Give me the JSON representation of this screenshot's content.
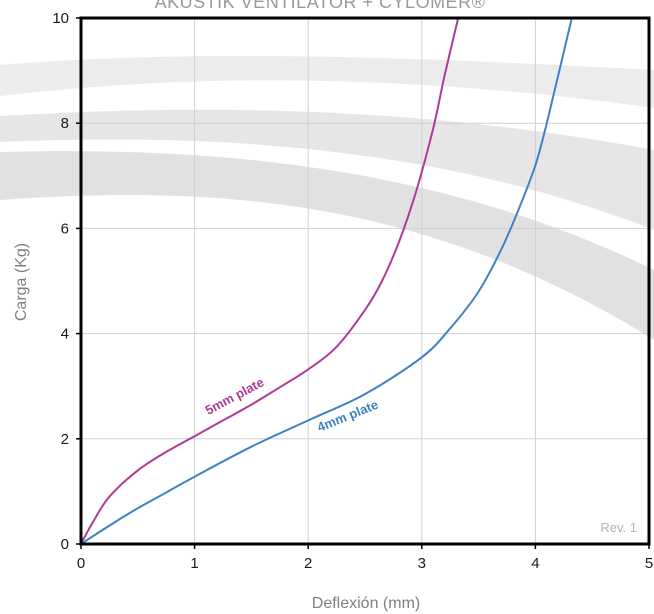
{
  "chart_data": {
    "type": "line",
    "title": "AKUSTIK VENTILATOR + CYLOMER®",
    "xlabel": "Deflexión (mm)",
    "ylabel": "Carga (Kg)",
    "xlim": [
      0,
      5
    ],
    "ylim": [
      0,
      10
    ],
    "x_ticks": [
      "0",
      "1",
      "2",
      "3",
      "4",
      "5"
    ],
    "y_ticks": [
      "0",
      "2",
      "4",
      "6",
      "8",
      "10"
    ],
    "grid": true,
    "annotation": "Rev. 1",
    "series": [
      {
        "name": "5mm plate",
        "color": "#b03a9a",
        "x": [
          0,
          0.1,
          0.25,
          0.5,
          0.75,
          1.0,
          1.25,
          1.5,
          1.75,
          2.0,
          2.25,
          2.5,
          2.65,
          2.8,
          2.95,
          3.1,
          3.2,
          3.32
        ],
        "y": [
          0,
          0.4,
          0.9,
          1.4,
          1.75,
          2.05,
          2.35,
          2.65,
          2.98,
          3.32,
          3.75,
          4.45,
          5.0,
          5.75,
          6.7,
          7.9,
          8.9,
          10
        ]
      },
      {
        "name": "4mm plate",
        "color": "#3f82c4",
        "x": [
          0,
          0.25,
          0.5,
          0.75,
          1.0,
          1.5,
          2.0,
          2.5,
          3.0,
          3.25,
          3.5,
          3.7,
          3.85,
          4.0,
          4.1,
          4.2,
          4.32
        ],
        "y": [
          0,
          0.35,
          0.68,
          0.98,
          1.28,
          1.85,
          2.35,
          2.85,
          3.55,
          4.1,
          4.8,
          5.6,
          6.35,
          7.2,
          8.0,
          8.9,
          10
        ]
      }
    ]
  }
}
